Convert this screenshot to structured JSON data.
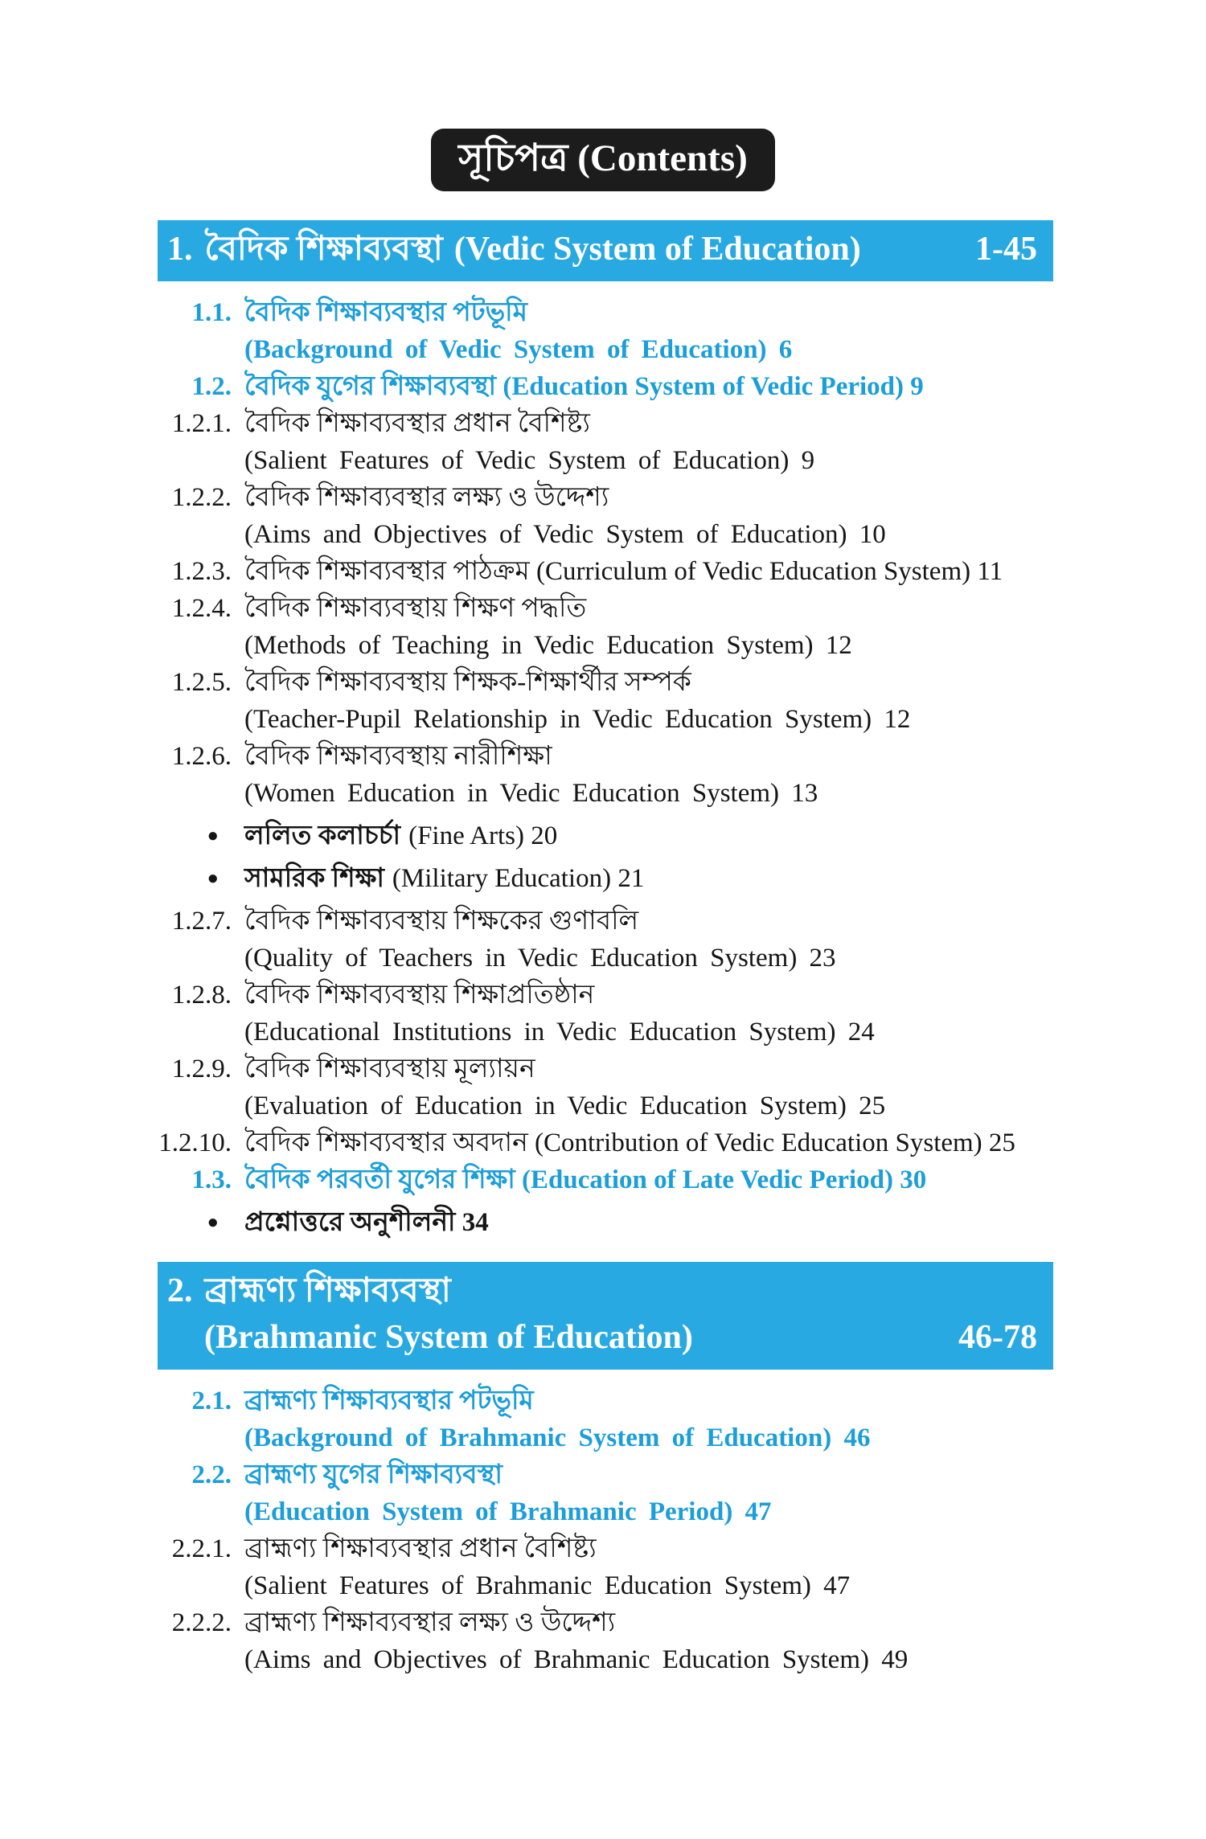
{
  "page": {
    "title": "সূচিপত্র (Contents)"
  },
  "colors": {
    "band_background": "#29a9e1",
    "blue_item_text": "#1b9ed9",
    "badge_background": "#1c1c1c",
    "badge_text": "#ffffff",
    "body_text": "#151515"
  },
  "sections": [
    {
      "number": "1.",
      "title_bn": "বৈদিক শিক্ষাব্যবস্থা",
      "title_en": "(Vedic System of Education)",
      "pages": "1-45",
      "two_line": false,
      "items": [
        {
          "label": "1.1.",
          "style": "blue",
          "line1": "বৈদিক শিক্ষাব্যবস্থার পটভূমি",
          "line2": "(Background of Vedic System of Education) 6"
        },
        {
          "label": "1.2.",
          "style": "blue",
          "line1": "বৈদিক যুগের শিক্ষাব্যবস্থা (Education System of Vedic Period) 9"
        },
        {
          "label": "1.2.1.",
          "style": "black",
          "line1": "বৈদিক শিক্ষাব্যবস্থার প্রধান বৈশিষ্ট্য",
          "line2": "(Salient Features of Vedic System of Education) 9"
        },
        {
          "label": "1.2.2.",
          "style": "black",
          "line1": "বৈদিক শিক্ষাব্যবস্থার লক্ষ্য ও উদ্দেশ্য",
          "line2": "(Aims and Objectives of Vedic System of Education) 10"
        },
        {
          "label": "1.2.3.",
          "style": "black",
          "line1": "বৈদিক শিক্ষাব্যবস্থার পাঠক্রম (Curriculum of Vedic Education System) 11"
        },
        {
          "label": "1.2.4.",
          "style": "black",
          "line1": "বৈদিক শিক্ষাব্যবস্থায় শিক্ষণ পদ্ধতি",
          "line2": "(Methods of Teaching in Vedic Education System) 12"
        },
        {
          "label": "1.2.5.",
          "style": "black",
          "line1": "বৈদিক শিক্ষাব্যবস্থায় শিক্ষক-শিক্ষার্থীর সম্পর্ক",
          "line2": "(Teacher-Pupil Relationship in Vedic Education System) 12"
        },
        {
          "label": "1.2.6.",
          "style": "black",
          "line1": "বৈদিক শিক্ষাব্যবস্থায় নারীশিক্ষা",
          "line2": "(Women Education in Vedic Education System) 13"
        },
        {
          "label": "●",
          "style": "bullet",
          "line1": "ললিত কলাচর্চা",
          "en": "(Fine Arts) 20"
        },
        {
          "label": "●",
          "style": "bullet",
          "line1": "সামরিক শিক্ষা",
          "en": "(Military Education) 21"
        },
        {
          "label": "1.2.7.",
          "style": "black",
          "line1": "বৈদিক শিক্ষাব্যবস্থায় শিক্ষকের গুণাবলি",
          "line2": "(Quality of Teachers in Vedic Education System) 23"
        },
        {
          "label": "1.2.8.",
          "style": "black",
          "line1": "বৈদিক শিক্ষাব্যবস্থায় শিক্ষাপ্রতিষ্ঠান",
          "line2": "(Educational Institutions in Vedic Education System) 24"
        },
        {
          "label": "1.2.9.",
          "style": "black",
          "line1": "বৈদিক শিক্ষাব্যবস্থায় মূল্যায়ন",
          "line2": "(Evaluation of Education in Vedic Education System) 25"
        },
        {
          "label": "1.2.10.",
          "style": "black",
          "line1": "বৈদিক শিক্ষাব্যবস্থার অবদান (Contribution of Vedic Education System) 25"
        },
        {
          "label": "1.3.",
          "style": "blue",
          "line1": "বৈদিক পরবর্তী যুগের শিক্ষা (Education of Late Vedic Period) 30"
        },
        {
          "label": "●",
          "style": "bullet",
          "line1": "প্রশ্নোত্তরে অনুশীলনী 34"
        }
      ]
    },
    {
      "number": "2.",
      "title_bn": "ব্রাহ্মণ্য শিক্ষাব্যবস্থা",
      "title_en": "(Brahmanic System of Education)",
      "pages": "46-78",
      "two_line": true,
      "items": [
        {
          "label": "2.1.",
          "style": "blue",
          "line1": "ব্রাহ্মণ্য শিক্ষাব্যবস্থার পটভূমি",
          "line2": "(Background of Brahmanic System of Education) 46"
        },
        {
          "label": "2.2.",
          "style": "blue",
          "line1": "ব্রাহ্মণ্য যুগের শিক্ষাব্যবস্থা",
          "line2": "(Education System of Brahmanic Period) 47"
        },
        {
          "label": "2.2.1.",
          "style": "black",
          "line1": "ব্রাহ্মণ্য শিক্ষাব্যবস্থার প্রধান বৈশিষ্ট্য",
          "line2": "(Salient Features of Brahmanic Education System) 47"
        },
        {
          "label": "2.2.2.",
          "style": "black",
          "line1": "ব্রাহ্মণ্য শিক্ষাব্যবস্থার লক্ষ্য ও উদ্দেশ্য",
          "line2": "(Aims and Objectives of Brahmanic Education System) 49"
        }
      ]
    }
  ]
}
